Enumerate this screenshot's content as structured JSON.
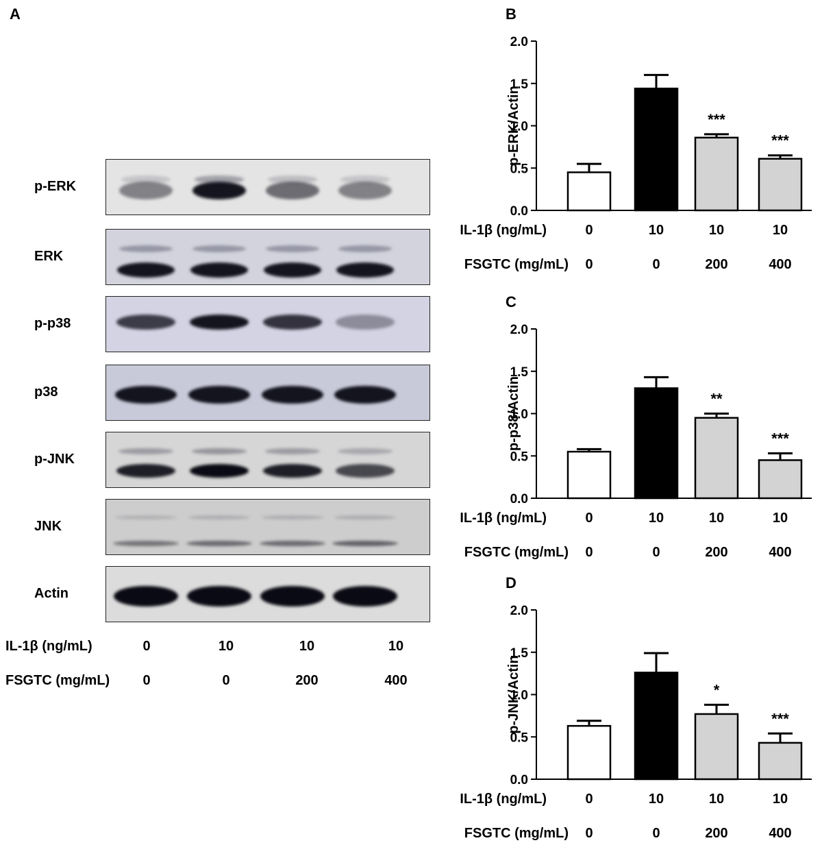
{
  "panel_a": {
    "letter": "A",
    "rows": [
      {
        "label": "p-ERK",
        "bg": "#e4e4e4"
      },
      {
        "label": "ERK",
        "bg": "#d2d3dd"
      },
      {
        "label": "p-p38",
        "bg": "#d4d3e3"
      },
      {
        "label": "p38",
        "bg": "#c9cad9"
      },
      {
        "label": "p-JNK",
        "bg": "#d6d6d6"
      },
      {
        "label": "JNK",
        "bg": "#cdcdcd"
      },
      {
        "label": "Actin",
        "bg": "#dcdcdc"
      }
    ],
    "il1b_label": "IL-1β (ng/mL)",
    "fsgtc_label": "FSGTC (mg/mL)",
    "il1b_values": [
      "0",
      "10",
      "10",
      "10"
    ],
    "fsgtc_values": [
      "0",
      "0",
      "200",
      "400"
    ]
  },
  "chart_data": [
    {
      "type": "bar",
      "letter": "B",
      "ylabel": "p-ERK/Actin",
      "ylim": [
        0,
        2.0
      ],
      "yticks": [
        "0.0",
        "0.5",
        "1.0",
        "1.5",
        "2.0"
      ],
      "values": [
        0.45,
        1.44,
        0.86,
        0.61
      ],
      "errors": [
        0.1,
        0.16,
        0.04,
        0.04
      ],
      "significance": [
        "",
        "",
        "***",
        "***"
      ],
      "fills": [
        "#ffffff",
        "#000000",
        "#d3d3d3",
        "#d3d3d3"
      ],
      "il1b_label": "IL-1β (ng/mL)",
      "fsgtc_label": "FSGTC (mg/mL)",
      "il1b_values": [
        "0",
        "10",
        "10",
        "10"
      ],
      "fsgtc_values": [
        "0",
        "0",
        "200",
        "400"
      ]
    },
    {
      "type": "bar",
      "letter": "C",
      "ylabel": "p-p38/Actin",
      "ylim": [
        0,
        2.0
      ],
      "yticks": [
        "0.0",
        "0.5",
        "1.0",
        "1.5",
        "2.0"
      ],
      "values": [
        0.55,
        1.3,
        0.95,
        0.45
      ],
      "errors": [
        0.03,
        0.13,
        0.05,
        0.08
      ],
      "significance": [
        "",
        "",
        "**",
        "***"
      ],
      "fills": [
        "#ffffff",
        "#000000",
        "#d3d3d3",
        "#d3d3d3"
      ],
      "il1b_label": "IL-1β (ng/mL)",
      "fsgtc_label": "FSGTC (mg/mL)",
      "il1b_values": [
        "0",
        "10",
        "10",
        "10"
      ],
      "fsgtc_values": [
        "0",
        "0",
        "200",
        "400"
      ]
    },
    {
      "type": "bar",
      "letter": "D",
      "ylabel": "p-JNK/Actin",
      "ylim": [
        0,
        2.0
      ],
      "yticks": [
        "0.0",
        "0.5",
        "1.0",
        "1.5",
        "2.0"
      ],
      "values": [
        0.63,
        1.26,
        0.77,
        0.43
      ],
      "errors": [
        0.06,
        0.23,
        0.11,
        0.11
      ],
      "significance": [
        "",
        "",
        "*",
        "***"
      ],
      "fills": [
        "#ffffff",
        "#000000",
        "#d3d3d3",
        "#d3d3d3"
      ],
      "il1b_label": "IL-1β (ng/mL)",
      "fsgtc_label": "FSGTC (mg/mL)",
      "il1b_values": [
        "0",
        "10",
        "10",
        "10"
      ],
      "fsgtc_values": [
        "0",
        "0",
        "200",
        "400"
      ]
    }
  ]
}
